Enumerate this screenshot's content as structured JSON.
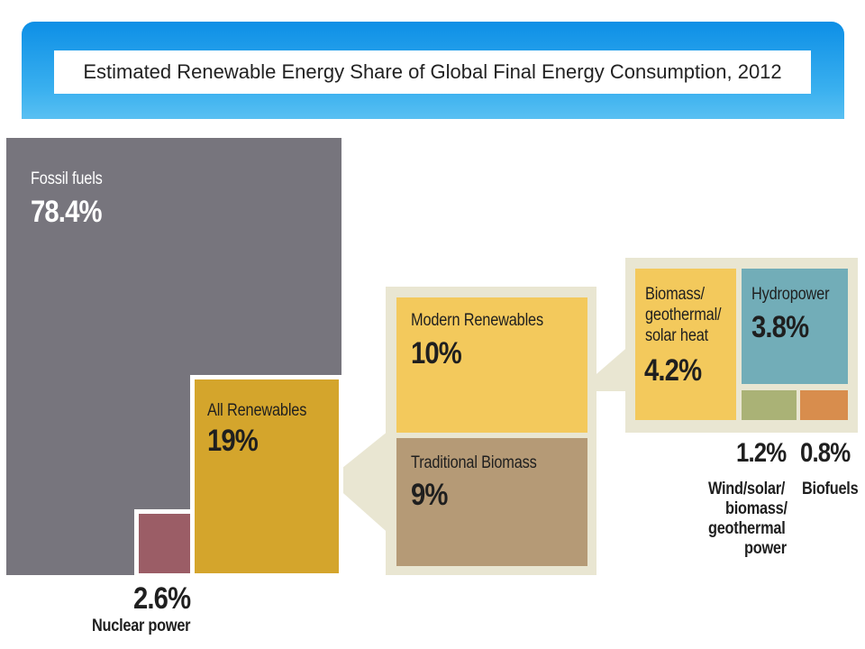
{
  "header": {
    "title": "Estimated Renewable Energy Share of Global Final Energy Consumption, 2012"
  },
  "colors": {
    "banner": "#1a9ae9",
    "fossil": "#77757d",
    "nuclear": "#9b5d66",
    "renewables": "#d4a52c",
    "modern": "#f3c95c",
    "traditional": "#b59a76",
    "callout_bg": "#e9e6d2",
    "hydro": "#72adb8",
    "wind_solar": "#aab276",
    "biofuels": "#d88d4d"
  },
  "chart_data": {
    "type": "treemap",
    "title": "Estimated Renewable Energy Share of Global Final Energy Consumption, 2012",
    "unit": "%",
    "segments": [
      {
        "name": "Fossil fuels",
        "value": 78.4,
        "label": "78.4%"
      },
      {
        "name": "Nuclear power",
        "value": 2.6,
        "label": "2.6%"
      },
      {
        "name": "All Renewables",
        "value": 19,
        "label": "19%",
        "children": [
          {
            "name": "Modern Renewables",
            "value": 10,
            "label": "10%",
            "children": [
              {
                "name": "Biomass/ geothermal/ solar heat",
                "value": 4.2,
                "label": "4.2%"
              },
              {
                "name": "Hydropower",
                "value": 3.8,
                "label": "3.8%"
              },
              {
                "name": "Wind/solar/ biomass/ geothermal power",
                "value": 1.2,
                "label": "1.2%"
              },
              {
                "name": "Biofuels",
                "value": 0.8,
                "label": "0.8%"
              }
            ]
          },
          {
            "name": "Traditional Biomass",
            "value": 9,
            "label": "9%"
          }
        ]
      }
    ]
  },
  "labels": {
    "fossil_name": "Fossil fuels",
    "fossil_value": "78.4%",
    "nuclear_name": "Nuclear power",
    "nuclear_value": "2.6%",
    "renew_name": "All Renewables",
    "renew_value": "19%",
    "modern_name": "Modern Renewables",
    "modern_value": "10%",
    "trad_name": "Traditional Biomass",
    "trad_value": "9%",
    "heat_name_1": "Biomass/",
    "heat_name_2": "geothermal/",
    "heat_name_3": "solar heat",
    "heat_value": "4.2%",
    "hydro_name": "Hydropower",
    "hydro_value": "3.8%",
    "wind_value": "1.2%",
    "wind_name_1": "Wind/solar/",
    "wind_name_2": "biomass/",
    "wind_name_3": "geothermal",
    "wind_name_4": "power",
    "biofuels_value": "0.8%",
    "biofuels_name": "Biofuels"
  }
}
